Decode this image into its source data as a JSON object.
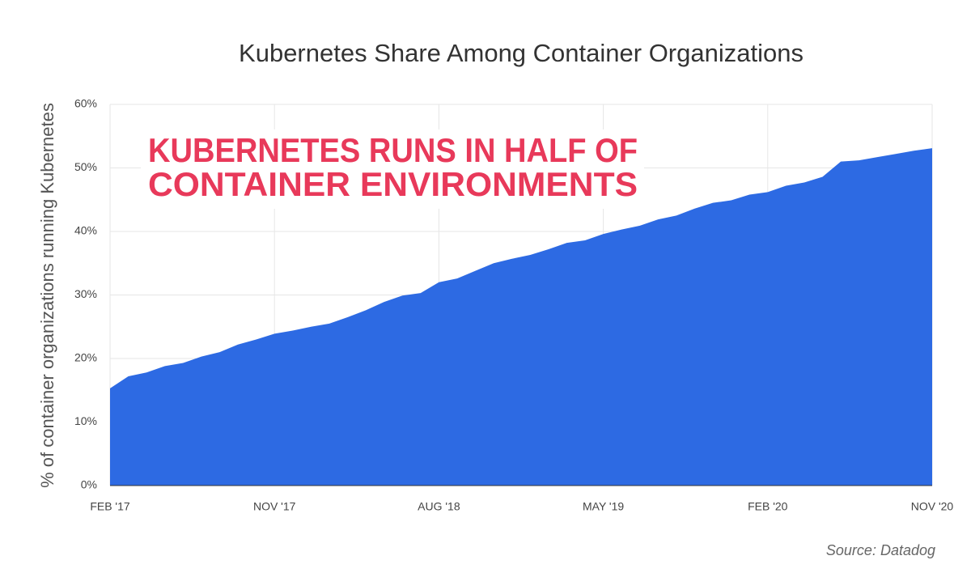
{
  "chart_data": {
    "type": "area",
    "title": "Kubernetes Share Among Container Organizations",
    "annotation": [
      "KUBERNETES RUNS IN HALF OF",
      "CONTAINER ENVIRONMENTS"
    ],
    "y_label": "% of container organizations running Kubernetes",
    "source": "Source: Datadog",
    "color": "#2d6ae3",
    "annotation_color": "#e8395a",
    "grid": true,
    "categories": [
      "FEB '17",
      null,
      null,
      null,
      null,
      null,
      null,
      null,
      null,
      "NOV '17",
      null,
      null,
      null,
      null,
      null,
      null,
      null,
      null,
      "AUG '18",
      null,
      null,
      null,
      null,
      null,
      null,
      null,
      null,
      "MAY '19",
      null,
      null,
      null,
      null,
      null,
      null,
      null,
      null,
      "FEB '20",
      null,
      null,
      null,
      null,
      null,
      null,
      null,
      null,
      "NOV '20"
    ],
    "values": [
      15.3,
      17.2,
      17.8,
      18.8,
      19.3,
      20.3,
      21.0,
      22.2,
      23.0,
      23.9,
      24.4,
      25.0,
      25.5,
      26.5,
      27.6,
      28.9,
      29.9,
      30.3,
      32.0,
      32.6,
      33.8,
      35.0,
      35.7,
      36.3,
      37.2,
      38.2,
      38.6,
      39.6,
      40.3,
      40.9,
      41.9,
      42.5,
      43.6,
      44.5,
      44.9,
      45.8,
      46.2,
      47.2,
      47.7,
      48.6,
      51.0,
      51.2,
      51.7,
      52.2,
      52.7,
      53.1
    ],
    "ylim": [
      0,
      60
    ],
    "yticks": [
      {
        "value": 0,
        "label": "0%"
      },
      {
        "value": 10,
        "label": "10%"
      },
      {
        "value": 20,
        "label": "20%"
      },
      {
        "value": 30,
        "label": "30%"
      },
      {
        "value": 40,
        "label": "40%"
      },
      {
        "value": 50,
        "label": "50%"
      },
      {
        "value": 60,
        "label": "60%"
      }
    ]
  }
}
